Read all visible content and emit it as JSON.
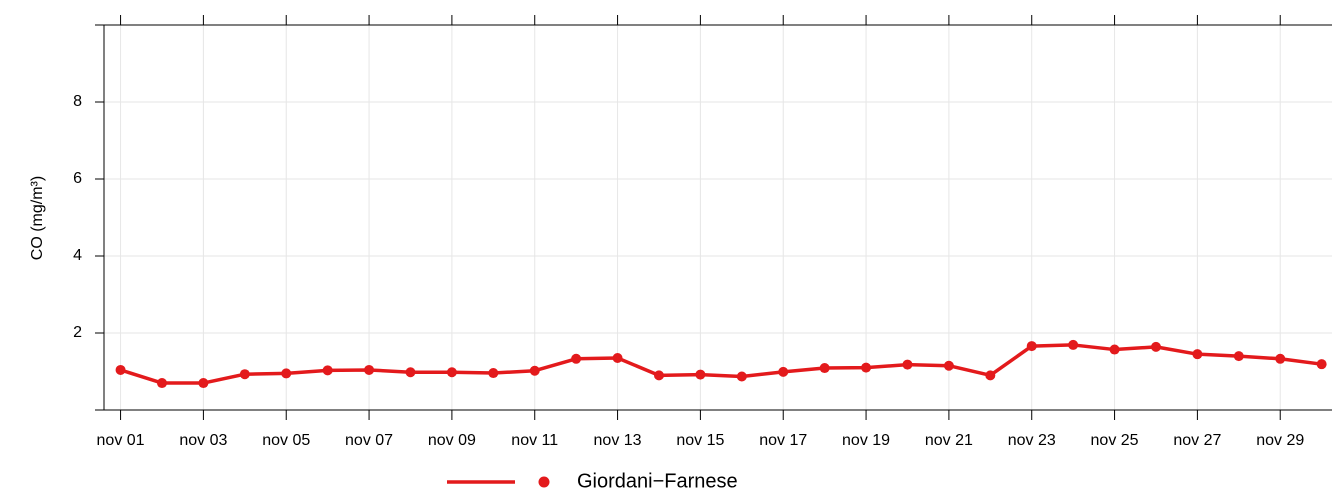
{
  "chart_data": {
    "type": "line",
    "y_label": "CO (mg/m³)",
    "x": [
      1,
      2,
      3,
      4,
      5,
      6,
      7,
      8,
      9,
      10,
      11,
      12,
      13,
      14,
      15,
      16,
      17,
      18,
      19,
      20,
      21,
      22,
      23,
      24,
      25,
      26,
      27,
      28,
      29,
      30
    ],
    "series": [
      {
        "name": "Giordani−Farnese",
        "color": "#e31a1c",
        "values": [
          1.04,
          0.7,
          0.7,
          0.93,
          0.95,
          1.03,
          1.04,
          0.98,
          0.98,
          0.96,
          1.02,
          1.33,
          1.35,
          0.9,
          0.92,
          0.87,
          0.99,
          1.09,
          1.1,
          1.18,
          1.15,
          0.9,
          1.66,
          1.69,
          1.57,
          1.64,
          1.45,
          1.4,
          1.33,
          1.19
        ]
      }
    ],
    "xlim": [
      0.6,
      30.25
    ],
    "ylim": [
      0,
      10
    ],
    "xticks": [
      {
        "value": 1,
        "label": "nov 01"
      },
      {
        "value": 3,
        "label": "nov 03"
      },
      {
        "value": 5,
        "label": "nov 05"
      },
      {
        "value": 7,
        "label": "nov 07"
      },
      {
        "value": 9,
        "label": "nov 09"
      },
      {
        "value": 11,
        "label": "nov 11"
      },
      {
        "value": 13,
        "label": "nov 13"
      },
      {
        "value": 15,
        "label": "nov 15"
      },
      {
        "value": 17,
        "label": "nov 17"
      },
      {
        "value": 19,
        "label": "nov 19"
      },
      {
        "value": 21,
        "label": "nov 21"
      },
      {
        "value": 23,
        "label": "nov 23"
      },
      {
        "value": 25,
        "label": "nov 25"
      },
      {
        "value": 27,
        "label": "nov 27"
      },
      {
        "value": 29,
        "label": "nov 29"
      }
    ],
    "yticks": [
      2,
      4,
      6,
      8
    ],
    "grid": true
  }
}
